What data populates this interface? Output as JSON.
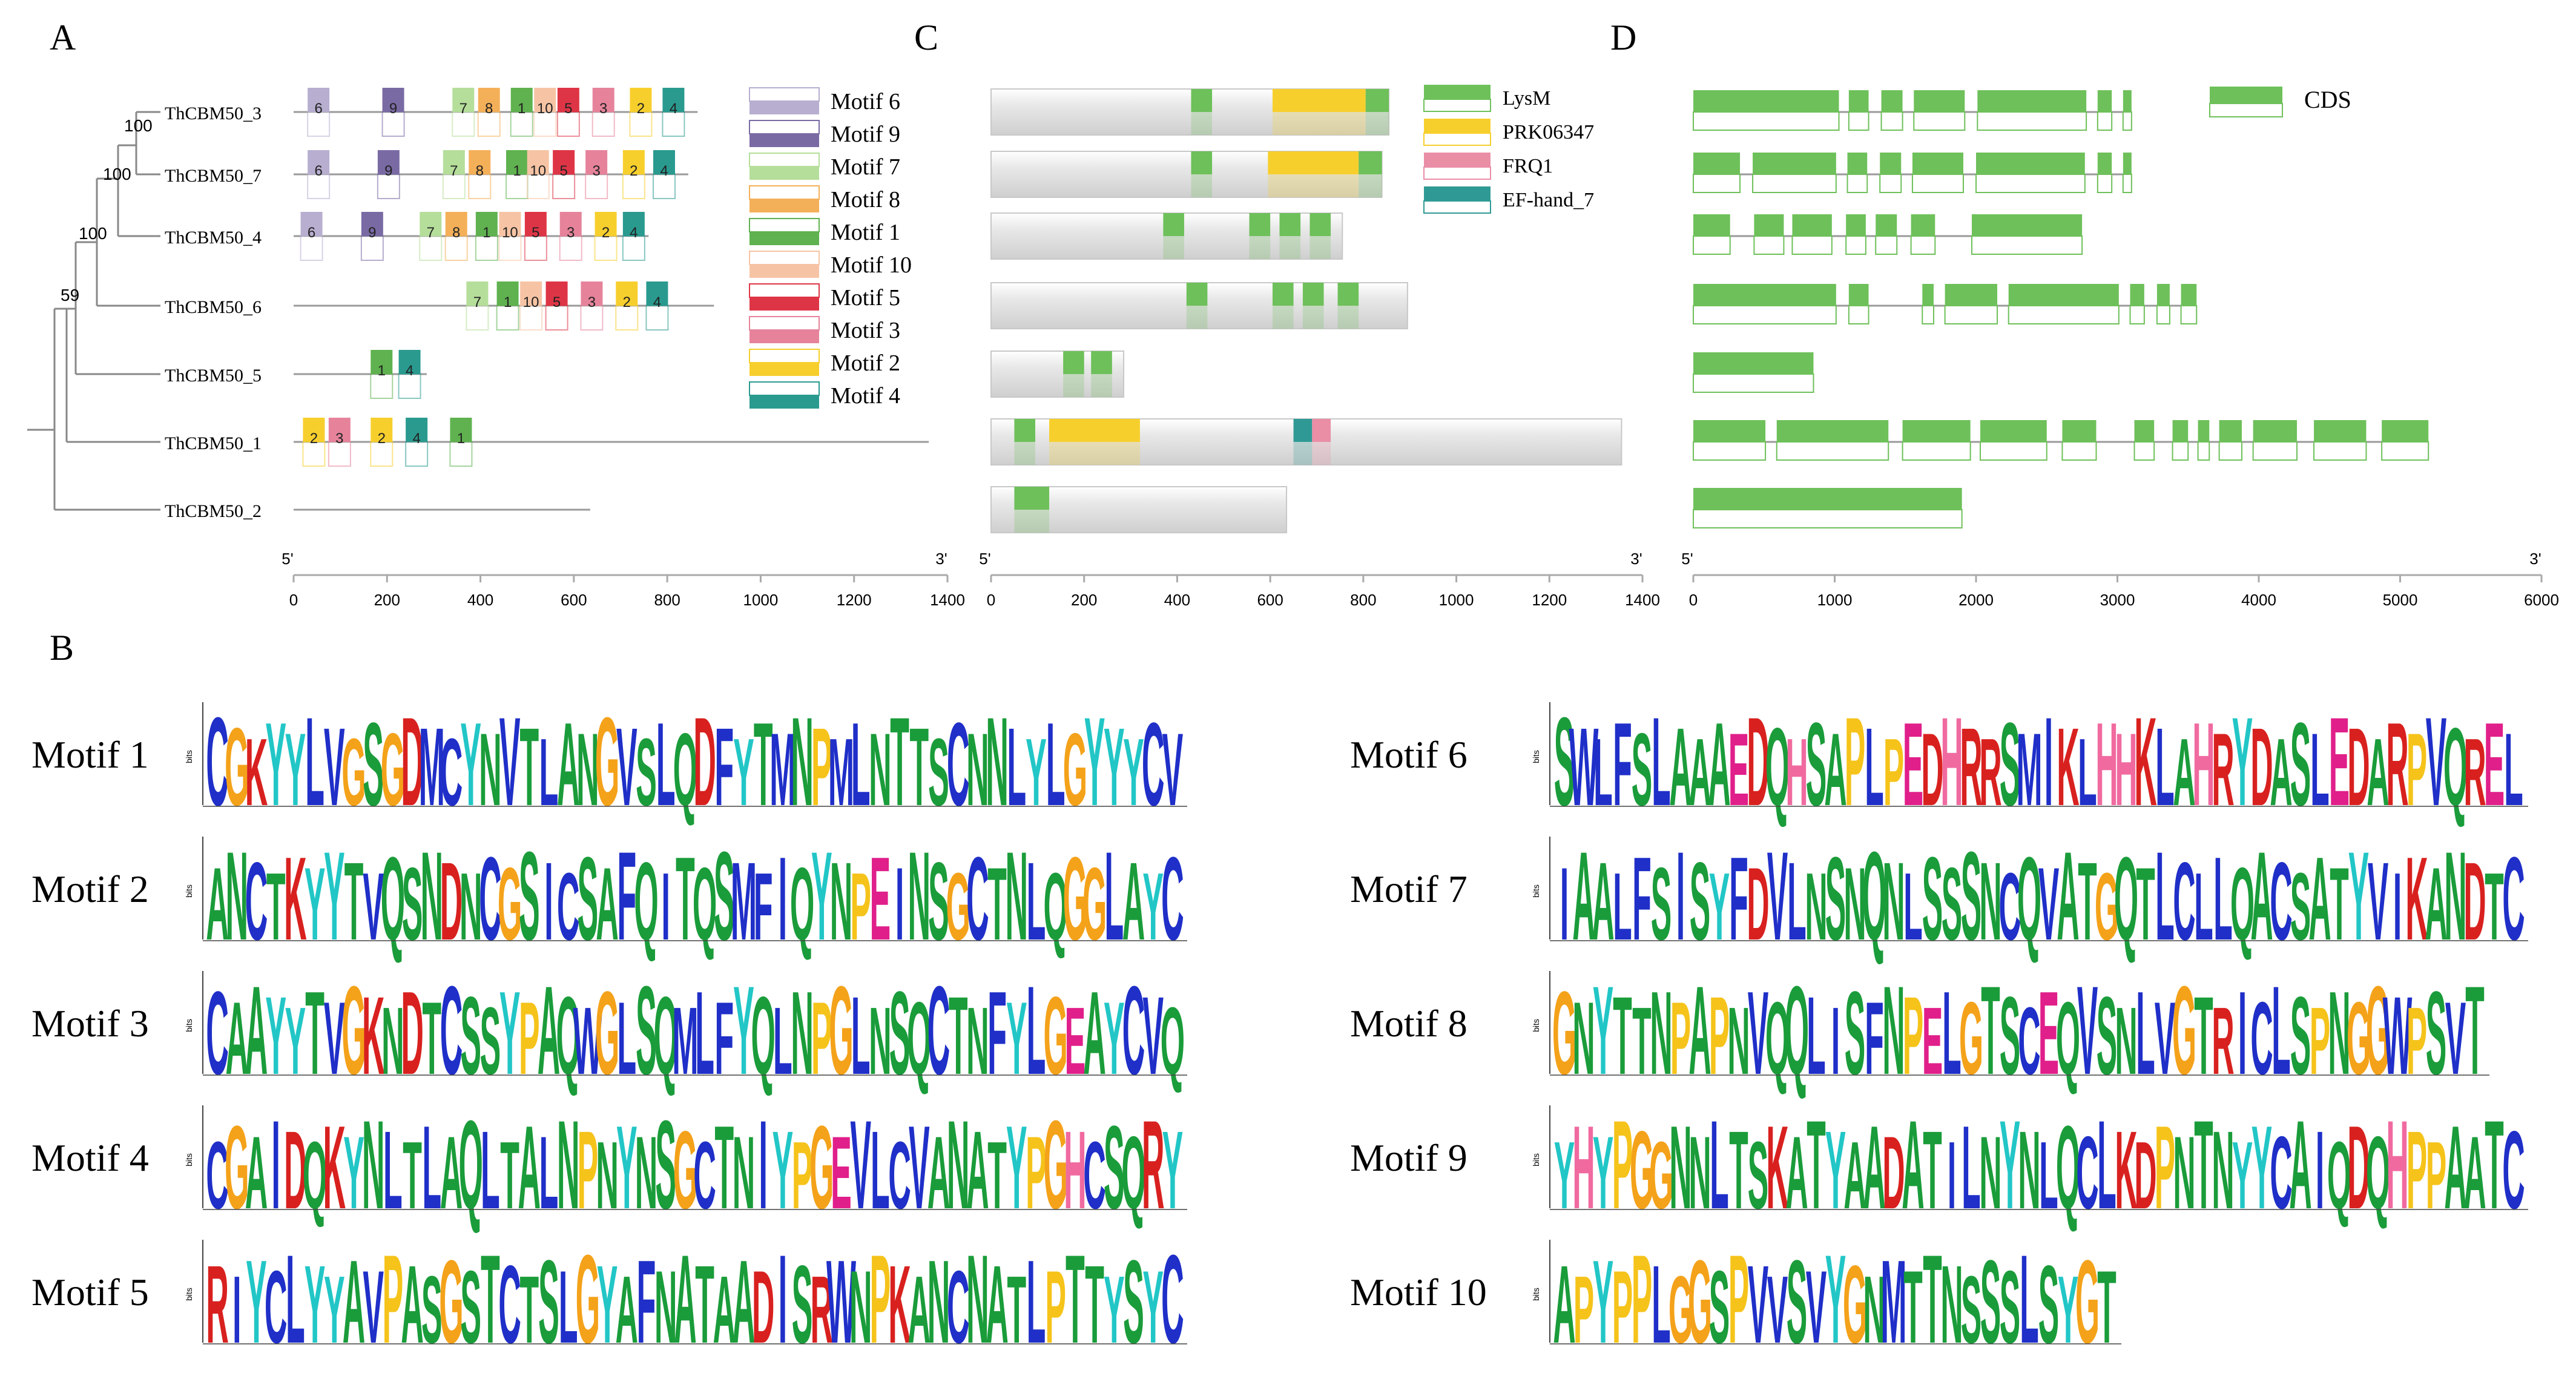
{
  "panel_labels": {
    "a": "A",
    "b": "B",
    "c": "C",
    "d": "D"
  },
  "colors": {
    "motif": {
      "1": "#5fb24f",
      "2": "#f7cf2d",
      "3": "#e6839b",
      "4": "#2a9a8f",
      "5": "#de3546",
      "6": "#b7aed0",
      "7": "#b5de9a",
      "8": "#f4b059",
      "9": "#7a6aa4",
      "10": "#f6c4a4"
    },
    "domain": {
      "LysM": "#6ec05a",
      "PRK06347": "#f7cf2d",
      "FRQ1": "#ea8ea6",
      "EF-hand_7": "#2f9a95"
    },
    "cds": "#6ec05a",
    "protein_bar": "#dcdcdc",
    "logo": {
      "A": "#1a9c3a",
      "C": "#1f2fc8",
      "D": "#d8211f",
      "E": "#e01f8a",
      "F": "#1f2fc8",
      "G": "#f4a21a",
      "H": "#f06aa0",
      "I": "#1f2fc8",
      "K": "#d8211f",
      "L": "#1f2fc8",
      "M": "#1f2fc8",
      "N": "#1a9c3a",
      "P": "#f5c31a",
      "Q": "#1a9c3a",
      "R": "#d8211f",
      "S": "#1a9c3a",
      "T": "#1a9c3a",
      "V": "#1f2fc8",
      "W": "#1f2fc8",
      "Y": "#22c6c6"
    }
  },
  "tree": {
    "genes": [
      "ThCBM50_3",
      "ThCBM50_7",
      "ThCBM50_4",
      "ThCBM50_6",
      "ThCBM50_5",
      "ThCBM50_1",
      "ThCBM50_2"
    ],
    "bootstrap": [
      "100",
      "100",
      "100",
      "59"
    ]
  },
  "panel_a": {
    "proteins": [
      {
        "gene": "ThCBM50_3",
        "length": 865,
        "motifs": [
          {
            "id": "6",
            "pos": 30
          },
          {
            "id": "9",
            "pos": 190
          },
          {
            "id": "7",
            "pos": 340
          },
          {
            "id": "8",
            "pos": 395
          },
          {
            "id": "1",
            "pos": 465
          },
          {
            "id": "10",
            "pos": 515
          },
          {
            "id": "5",
            "pos": 565
          },
          {
            "id": "3",
            "pos": 640
          },
          {
            "id": "2",
            "pos": 720
          },
          {
            "id": "4",
            "pos": 790
          }
        ]
      },
      {
        "gene": "ThCBM50_7",
        "length": 845,
        "motifs": [
          {
            "id": "6",
            "pos": 30
          },
          {
            "id": "9",
            "pos": 180
          },
          {
            "id": "7",
            "pos": 320
          },
          {
            "id": "8",
            "pos": 375
          },
          {
            "id": "1",
            "pos": 455
          },
          {
            "id": "10",
            "pos": 500
          },
          {
            "id": "5",
            "pos": 555
          },
          {
            "id": "3",
            "pos": 625
          },
          {
            "id": "2",
            "pos": 705
          },
          {
            "id": "4",
            "pos": 770
          }
        ]
      },
      {
        "gene": "ThCBM50_4",
        "length": 760,
        "motifs": [
          {
            "id": "6",
            "pos": 15
          },
          {
            "id": "9",
            "pos": 145
          },
          {
            "id": "7",
            "pos": 270
          },
          {
            "id": "8",
            "pos": 325
          },
          {
            "id": "1",
            "pos": 390
          },
          {
            "id": "10",
            "pos": 440
          },
          {
            "id": "5",
            "pos": 495
          },
          {
            "id": "3",
            "pos": 570
          },
          {
            "id": "2",
            "pos": 645
          },
          {
            "id": "4",
            "pos": 705
          }
        ]
      },
      {
        "gene": "ThCBM50_6",
        "length": 900,
        "motifs": [
          {
            "id": "7",
            "pos": 370
          },
          {
            "id": "1",
            "pos": 435
          },
          {
            "id": "10",
            "pos": 485
          },
          {
            "id": "5",
            "pos": 540
          },
          {
            "id": "3",
            "pos": 615
          },
          {
            "id": "2",
            "pos": 690
          },
          {
            "id": "4",
            "pos": 755
          }
        ]
      },
      {
        "gene": "ThCBM50_5",
        "length": 285,
        "motifs": [
          {
            "id": "1",
            "pos": 165
          },
          {
            "id": "4",
            "pos": 225
          }
        ]
      },
      {
        "gene": "ThCBM50_1",
        "length": 1360,
        "motifs": [
          {
            "id": "2",
            "pos": 20
          },
          {
            "id": "3",
            "pos": 75
          },
          {
            "id": "2",
            "pos": 165
          },
          {
            "id": "4",
            "pos": 240
          },
          {
            "id": "1",
            "pos": 335
          }
        ]
      },
      {
        "gene": "ThCBM50_2",
        "length": 635,
        "motifs": []
      }
    ],
    "legend": [
      "Motif 6",
      "Motif 9",
      "Motif 7",
      "Motif 8",
      "Motif 1",
      "Motif 10",
      "Motif 5",
      "Motif 3",
      "Motif 2",
      "Motif 4"
    ],
    "axis": {
      "start_label": "5'",
      "end_label": "3'",
      "max": 1400,
      "ticks": [
        0,
        200,
        400,
        600,
        800,
        1000,
        1200,
        1400
      ]
    }
  },
  "panel_c": {
    "proteins": [
      {
        "gene": "ThCBM50_3",
        "length": 855,
        "domains": [
          {
            "name": "LysM",
            "start": 430,
            "end": 475
          },
          {
            "name": "PRK06347",
            "start": 605,
            "end": 805
          },
          {
            "name": "LysM",
            "start": 805,
            "end": 855
          }
        ]
      },
      {
        "gene": "ThCBM50_7",
        "length": 840,
        "domains": [
          {
            "name": "LysM",
            "start": 430,
            "end": 475
          },
          {
            "name": "PRK06347",
            "start": 595,
            "end": 790
          },
          {
            "name": "LysM",
            "start": 790,
            "end": 840
          }
        ]
      },
      {
        "gene": "ThCBM50_4",
        "length": 755,
        "domains": [
          {
            "name": "LysM",
            "start": 370,
            "end": 415
          },
          {
            "name": "LysM",
            "start": 555,
            "end": 600
          },
          {
            "name": "LysM",
            "start": 620,
            "end": 665
          },
          {
            "name": "LysM",
            "start": 685,
            "end": 730
          }
        ]
      },
      {
        "gene": "ThCBM50_6",
        "length": 895,
        "domains": [
          {
            "name": "LysM",
            "start": 420,
            "end": 465
          },
          {
            "name": "LysM",
            "start": 605,
            "end": 650
          },
          {
            "name": "LysM",
            "start": 670,
            "end": 715
          },
          {
            "name": "LysM",
            "start": 745,
            "end": 790
          }
        ]
      },
      {
        "gene": "ThCBM50_5",
        "length": 285,
        "domains": [
          {
            "name": "LysM",
            "start": 155,
            "end": 200
          },
          {
            "name": "LysM",
            "start": 215,
            "end": 260
          }
        ]
      },
      {
        "gene": "ThCBM50_1",
        "length": 1355,
        "domains": [
          {
            "name": "LysM",
            "start": 50,
            "end": 95
          },
          {
            "name": "PRK06347",
            "start": 125,
            "end": 320
          },
          {
            "name": "EF-hand_7",
            "start": 650,
            "end": 690
          },
          {
            "name": "FRQ1",
            "start": 690,
            "end": 730
          }
        ]
      },
      {
        "gene": "ThCBM50_2",
        "length": 635,
        "domains": [
          {
            "name": "LysM",
            "start": 50,
            "end": 125
          }
        ]
      }
    ],
    "legend": [
      "LysM",
      "PRK06347",
      "FRQ1",
      "EF-hand_7"
    ],
    "axis": {
      "start_label": "5'",
      "end_label": "3'",
      "max": 1400,
      "ticks": [
        0,
        200,
        400,
        600,
        800,
        1000,
        1200,
        1400
      ]
    }
  },
  "panel_d": {
    "genes": [
      {
        "gene": "ThCBM50_3",
        "length": 3100,
        "exons": [
          [
            0,
            1030
          ],
          [
            1100,
            1240
          ],
          [
            1330,
            1480
          ],
          [
            1560,
            1920
          ],
          [
            2010,
            2780
          ],
          [
            2860,
            2960
          ],
          [
            3040,
            3100
          ]
        ]
      },
      {
        "gene": "ThCBM50_7",
        "length": 3100,
        "exons": [
          [
            0,
            330
          ],
          [
            420,
            1010
          ],
          [
            1090,
            1230
          ],
          [
            1320,
            1470
          ],
          [
            1550,
            1910
          ],
          [
            2000,
            2770
          ],
          [
            2860,
            2960
          ],
          [
            3040,
            3100
          ]
        ]
      },
      {
        "gene": "ThCBM50_4",
        "length": 2750,
        "exons": [
          [
            0,
            260
          ],
          [
            430,
            640
          ],
          [
            700,
            980
          ],
          [
            1080,
            1220
          ],
          [
            1290,
            1440
          ],
          [
            1540,
            1710
          ],
          [
            1970,
            2750
          ]
        ]
      },
      {
        "gene": "ThCBM50_6",
        "length": 3560,
        "exons": [
          [
            0,
            1010
          ],
          [
            1100,
            1240
          ],
          [
            1620,
            1700
          ],
          [
            1780,
            2150
          ],
          [
            2230,
            3010
          ],
          [
            3090,
            3190
          ],
          [
            3280,
            3370
          ],
          [
            3450,
            3560
          ]
        ]
      },
      {
        "gene": "ThCBM50_5",
        "length": 850,
        "exons": [
          [
            0,
            850
          ]
        ]
      },
      {
        "gene": "ThCBM50_1",
        "length": 5200,
        "exons": [
          [
            0,
            510
          ],
          [
            590,
            1380
          ],
          [
            1480,
            1960
          ],
          [
            2030,
            2500
          ],
          [
            2610,
            2850
          ],
          [
            3120,
            3260
          ],
          [
            3390,
            3500
          ],
          [
            3570,
            3650
          ],
          [
            3720,
            3880
          ],
          [
            3960,
            4270
          ],
          [
            4390,
            4760
          ],
          [
            4870,
            5200
          ]
        ]
      },
      {
        "gene": "ThCBM50_2",
        "length": 1900,
        "exons": [
          [
            0,
            1900
          ]
        ]
      }
    ],
    "legend": [
      "CDS"
    ],
    "axis": {
      "start_label": "5'",
      "end_label": "3'",
      "max": 6000,
      "ticks": [
        0,
        1000,
        2000,
        3000,
        4000,
        5000,
        6000
      ]
    }
  },
  "panel_b": {
    "y_label": "bits",
    "logos": [
      {
        "label": "Motif  1",
        "seq": "CGKYYLVGSGDMCYNVTLANGVSLQDFYTMNPMLNTTSCNNLYLGYYYCV"
      },
      {
        "label": "Motif  2",
        "seq": "ANCTKYYTVQSNDNCGSICSAFQITQSMFIQYNPEINSGCTNLQGGLAYC"
      },
      {
        "label": "Motif  3",
        "seq": "CAAYYTVGKNDTCSSYPAQWGLSQMLFYQLNPGLNSQCTNFYLGEAYCVQ"
      },
      {
        "label": "Motif  4",
        "seq": "CGAIDQKYNLTLAQLTALNPNYNSGCTNIYPGEVLCVANATYPGHCSQRY"
      },
      {
        "label": "Motif  5",
        "seq": "RIYCLYYAVPASGSTCTSLGYAFNATAADISRWNPKANCNATLPTTYSYC"
      },
      {
        "label": "Motif  6",
        "seq": "SWLFSLAAAEDQHSAPLPEDHRRSMIKLHHKLAHRYDASLEDARPVQREL"
      },
      {
        "label": "Motif  7",
        "seq": "IAALFSISYFDVLNSNQNLSSSNCQVATGQTLCLLQACSATYVIKANDTC"
      },
      {
        "label": "Motif  8",
        "seq": "GNYTTNPAPNVQQLISFNPELGTSCEQVSNLVGTRICLSPNGGWPSVT"
      },
      {
        "label": "Motif  9",
        "seq": "YHYPGGNNLTSKATYAADATILNYNLQCLKDPNTNYYCAIQDQHPPAATC"
      },
      {
        "label": "Motif 10",
        "seq": "APYPPLGGSPVVSVYGNMTTNSSSLSYGT"
      }
    ]
  }
}
